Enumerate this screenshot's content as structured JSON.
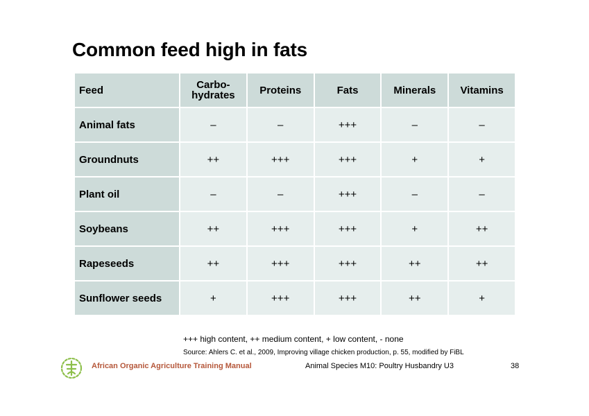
{
  "slide": {
    "title": "Common feed high in fats"
  },
  "table": {
    "headers": [
      "Feed",
      "Carbo-\nhydrates",
      "Proteins",
      "Fats",
      "Minerals",
      "Vitamins"
    ],
    "rows": [
      {
        "feed": "Animal fats",
        "values": [
          "–",
          "–",
          "+++",
          "–",
          "–"
        ]
      },
      {
        "feed": "Groundnuts",
        "values": [
          "++",
          "+++",
          "+++",
          "+",
          "+"
        ]
      },
      {
        "feed": "Plant oil",
        "values": [
          "–",
          "–",
          "+++",
          "–",
          "–"
        ]
      },
      {
        "feed": "Soybeans",
        "values": [
          "++",
          "+++",
          "+++",
          "+",
          "++"
        ]
      },
      {
        "feed": "Rapeseeds",
        "values": [
          "++",
          "+++",
          "+++",
          "++",
          "++"
        ]
      },
      {
        "feed": "Sunflower seeds",
        "values": [
          "+",
          "+++",
          "+++",
          "++",
          "+"
        ]
      }
    ]
  },
  "legend": "+++ high content, ++ medium content, + low content, - none",
  "source": "Source: Ahlers C. et al., 2009, Improving village chicken production, p. 55, modified by FiBL",
  "footer": {
    "manual": "African Organic Agriculture Training Manual",
    "module": "Animal Species M10: Poultry Husbandry U3",
    "page": "38"
  },
  "colors": {
    "header_bg": "#cddbd9",
    "cell_bg": "#e6eeed",
    "footer_brand": "#b5573a",
    "logo_green": "#8dbf4a"
  },
  "icons": {
    "logo": "organic-agriculture-logo-icon"
  }
}
